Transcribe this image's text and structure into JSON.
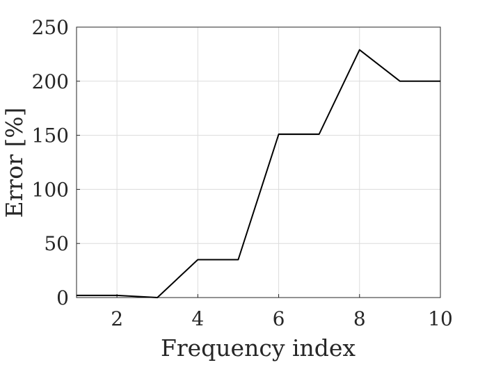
{
  "chart_data": {
    "type": "line",
    "title": "",
    "xlabel": "Frequency index",
    "ylabel": "Error [%]",
    "xlim": [
      1,
      10
    ],
    "ylim": [
      0,
      250
    ],
    "xticks": [
      2,
      4,
      6,
      8,
      10
    ],
    "yticks": [
      0,
      50,
      100,
      150,
      200,
      250
    ],
    "grid": true,
    "series": [
      {
        "x": [
          1,
          2,
          3,
          4,
          5,
          6,
          7,
          8,
          9,
          10
        ],
        "y": [
          2,
          2,
          0,
          35,
          35,
          151,
          151,
          229,
          200,
          200
        ],
        "color": "#000000"
      }
    ]
  }
}
